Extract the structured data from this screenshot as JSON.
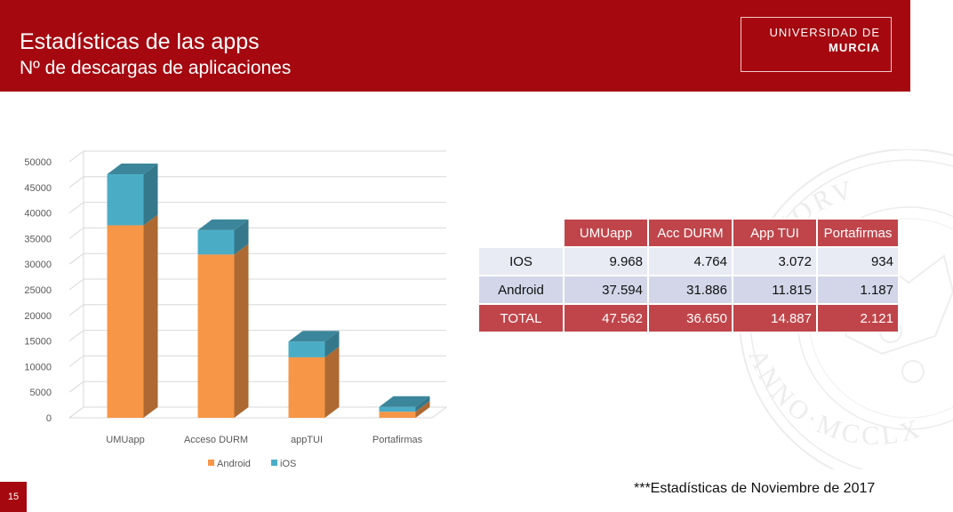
{
  "header": {
    "title": "Estadísticas de las apps",
    "subtitle": "Nº de descargas de aplicaciones",
    "logo_line1": "UNIVERSIDAD DE",
    "logo_line2": "MURCIA",
    "seal_text_top": "STVDIORV",
    "seal_text_bottom": "ANNO·MCCLX",
    "bg_color": "#a5080f"
  },
  "chart_data": {
    "type": "bar",
    "stacked": true,
    "three_d": true,
    "categories": [
      "UMUapp",
      "Acceso DURM",
      "appTUI",
      "Portafirmas"
    ],
    "series": [
      {
        "name": "Android",
        "values": [
          37594,
          31886,
          11815,
          1187
        ],
        "color": "#f79646"
      },
      {
        "name": "iOS",
        "values": [
          9968,
          4764,
          3072,
          934
        ],
        "color": "#4bacc6"
      }
    ],
    "yticks": [
      "0",
      "5000",
      "10000",
      "15000",
      "20000",
      "25000",
      "30000",
      "35000",
      "40000",
      "45000",
      "50000"
    ],
    "ylim": [
      0,
      50000
    ],
    "grid": true,
    "legend": "bottom",
    "title": "",
    "xlabel": "",
    "ylabel": ""
  },
  "table": {
    "headers": [
      "UMUapp",
      "Acc DURM",
      "App TUI",
      "Portafirmas"
    ],
    "rows": [
      {
        "label": "IOS",
        "values": [
          "9.968",
          "4.764",
          "3.072",
          "934"
        ]
      },
      {
        "label": "Android",
        "values": [
          "37.594",
          "31.886",
          "11.815",
          "1.187"
        ]
      },
      {
        "label": "TOTAL",
        "values": [
          "47.562",
          "36.650",
          "14.887",
          "2.121"
        ]
      }
    ]
  },
  "footer": {
    "note": "***Estadísticas de Noviembre de 2017",
    "page_number": "15"
  }
}
